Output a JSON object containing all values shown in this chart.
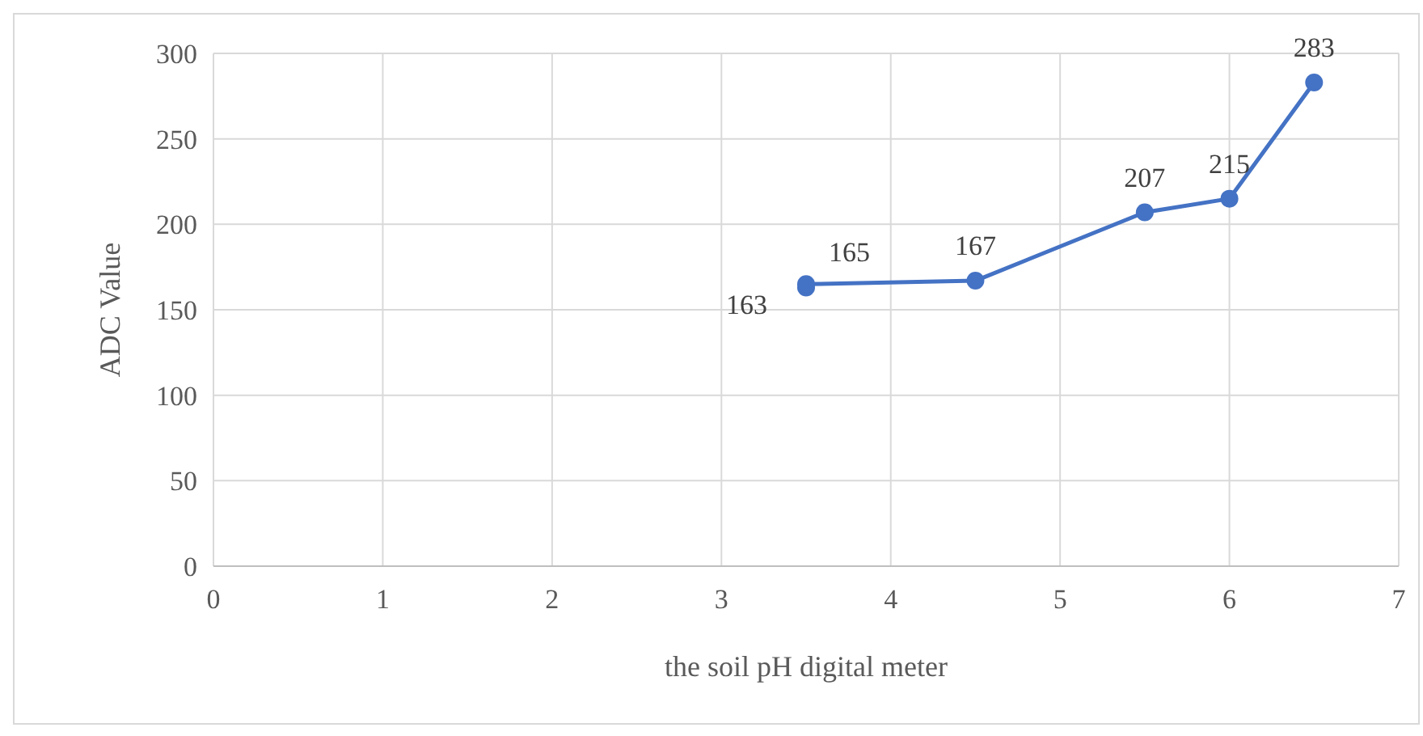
{
  "chart_data": {
    "type": "line",
    "xlabel": "the soil pH digital meter",
    "ylabel": "ADC Value",
    "x": [
      3.5,
      3.5,
      4.5,
      5.5,
      6,
      6.5
    ],
    "series": [
      {
        "color": "#4472c4",
        "values": [
          163,
          165,
          167,
          207,
          215,
          283
        ]
      }
    ],
    "xlim": [
      0,
      7
    ],
    "xticks": [
      0,
      1,
      2,
      3,
      4,
      5,
      6,
      7
    ],
    "ylim": [
      0,
      300
    ],
    "yticks": [
      0,
      50,
      100,
      150,
      200,
      250,
      300
    ],
    "grid": true,
    "marker": "circle",
    "line_style": "solid",
    "data_labels": true
  }
}
